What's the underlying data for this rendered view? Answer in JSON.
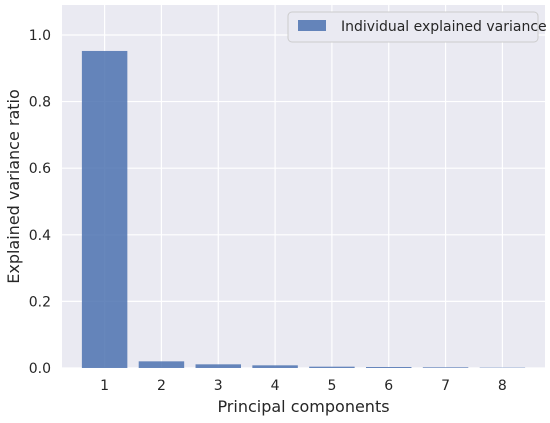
{
  "chart_data": {
    "type": "bar",
    "title": "",
    "xlabel": "Principal components",
    "ylabel": "Explained variance ratio",
    "categories": [
      "1",
      "2",
      "3",
      "4",
      "5",
      "6",
      "7",
      "8"
    ],
    "x": [
      1,
      2,
      3,
      4,
      5,
      6,
      7,
      8
    ],
    "series": [
      {
        "name": "Individual explained variance",
        "values": [
          0.952,
          0.02,
          0.011,
          0.008,
          0.004,
          0.003,
          0.002,
          0.001
        ]
      }
    ],
    "xlim": [
      0.25,
      8.75
    ],
    "ylim": [
      0,
      1.09
    ],
    "yticks": [
      0.0,
      0.2,
      0.4,
      0.6,
      0.8,
      1.0
    ],
    "ytick_labels": [
      "0.0",
      "0.2",
      "0.4",
      "0.6",
      "0.8",
      "1.0"
    ],
    "grid": true,
    "legend_position": "top-right",
    "colors": {
      "bar": "#4c72b0",
      "background": "#eaeaf2",
      "grid": "#ffffff",
      "text": "#262626"
    }
  }
}
